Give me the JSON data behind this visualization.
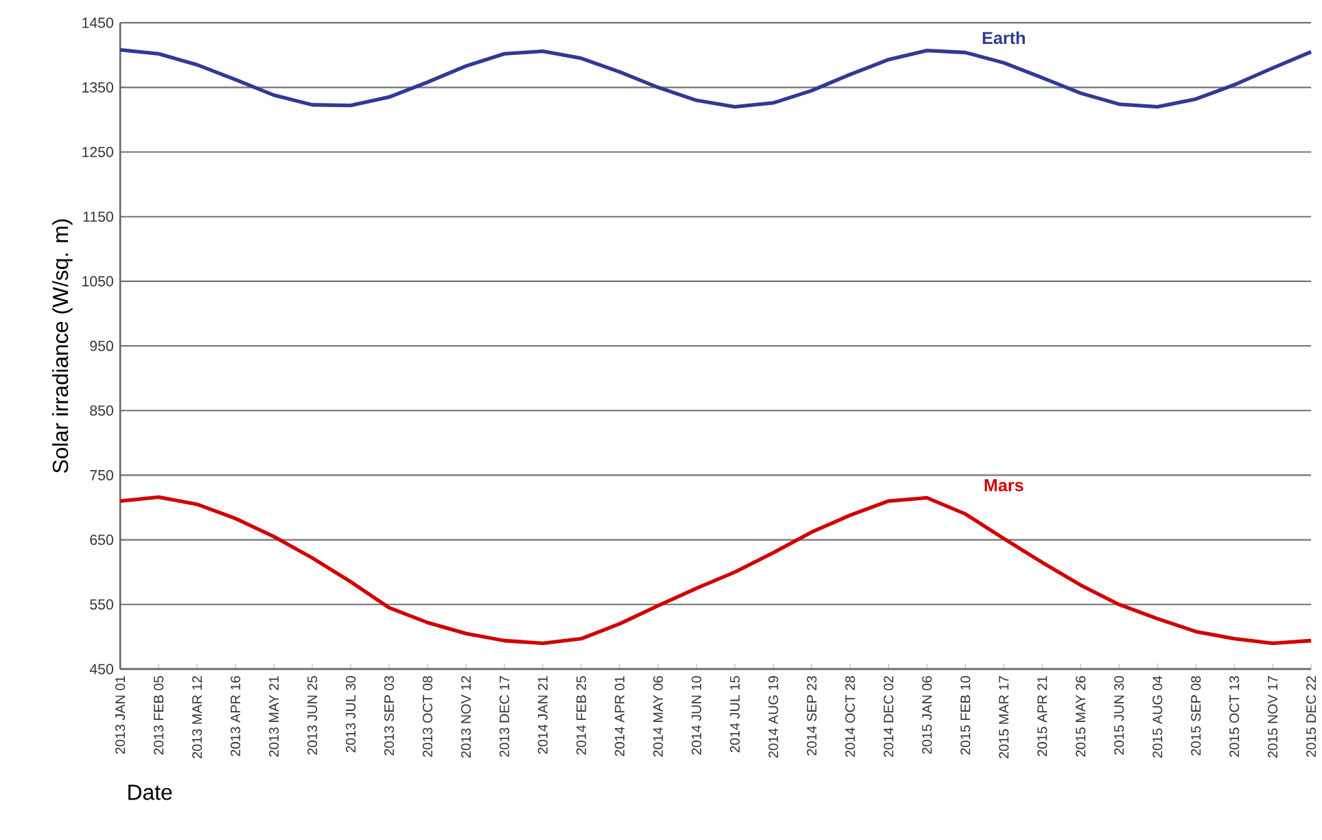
{
  "chart_data": {
    "type": "line",
    "xlabel": "Date",
    "ylabel": "Solar irradiance (W/sq. m)",
    "x": [
      "2013-01-01",
      "2013-02-05",
      "2013-03-12",
      "2013-04-16",
      "2013-05-21",
      "2013-06-25",
      "2013-07-30",
      "2013-09-03",
      "2013-10-08",
      "2013-11-12",
      "2013-12-17",
      "2014-01-21",
      "2014-02-25",
      "2014-04-01",
      "2014-05-06",
      "2014-06-10",
      "2014-07-15",
      "2014-08-19",
      "2014-09-23",
      "2014-10-28",
      "2014-12-02",
      "2015-01-06",
      "2015-02-10",
      "2015-03-17",
      "2015-04-21",
      "2015-05-26",
      "2015-06-30",
      "2015-08-04",
      "2015-09-08",
      "2015-10-13",
      "2015-11-17",
      "2015-12-22"
    ],
    "series": [
      {
        "name": "Earth",
        "color": "#2e3a94",
        "values": [
          1408,
          1402,
          1385,
          1362,
          1338,
          1323,
          1322,
          1335,
          1358,
          1383,
          1402,
          1406,
          1395,
          1374,
          1350,
          1330,
          1320,
          1326,
          1345,
          1370,
          1393,
          1407,
          1404,
          1388,
          1365,
          1341,
          1324,
          1320,
          1332,
          1354,
          1380,
          1405
        ]
      },
      {
        "name": "Mars",
        "color": "#d00000",
        "values": [
          710,
          716,
          705,
          683,
          655,
          622,
          585,
          545,
          522,
          505,
          494,
          490,
          497,
          520,
          548,
          575,
          600,
          630,
          662,
          688,
          710,
          715,
          690,
          652,
          615,
          580,
          550,
          528,
          508,
          497,
          490,
          494
        ]
      }
    ],
    "xlim": [
      "2013-01-01",
      "2015-12-22"
    ],
    "xticks": [
      {
        "value": "2013-01-01",
        "label": "2013 JAN 01"
      },
      {
        "value": "2013-02-05",
        "label": "2013 FEB 05"
      },
      {
        "value": "2013-03-12",
        "label": "2013 MAR 12"
      },
      {
        "value": "2013-04-16",
        "label": "2013 APR 16"
      },
      {
        "value": "2013-05-21",
        "label": "2013 MAY 21"
      },
      {
        "value": "2013-06-25",
        "label": "2013 JUN 25"
      },
      {
        "value": "2013-07-30",
        "label": "2013 JUL 30"
      },
      {
        "value": "2013-09-03",
        "label": "2013 SEP 03"
      },
      {
        "value": "2013-10-08",
        "label": "2013 OCT 08"
      },
      {
        "value": "2013-11-12",
        "label": "2013 NOV 12"
      },
      {
        "value": "2013-12-17",
        "label": "2013 DEC 17"
      },
      {
        "value": "2014-01-21",
        "label": "2014 JAN 21"
      },
      {
        "value": "2014-02-25",
        "label": "2014 FEB 25"
      },
      {
        "value": "2014-04-01",
        "label": "2014 APR 01"
      },
      {
        "value": "2014-05-06",
        "label": "2014 MAY 06"
      },
      {
        "value": "2014-06-10",
        "label": "2014 JUN 10"
      },
      {
        "value": "2014-07-15",
        "label": "2014 JUL 15"
      },
      {
        "value": "2014-08-19",
        "label": "2014 AUG 19"
      },
      {
        "value": "2014-09-23",
        "label": "2014 SEP 23"
      },
      {
        "value": "2014-10-28",
        "label": "2014 OCT 28"
      },
      {
        "value": "2014-12-02",
        "label": "2014 DEC 02"
      },
      {
        "value": "2015-01-06",
        "label": "2015 JAN 06"
      },
      {
        "value": "2015-02-10",
        "label": "2015 FEB 10"
      },
      {
        "value": "2015-03-17",
        "label": "2015 MAR 17"
      },
      {
        "value": "2015-04-21",
        "label": "2015 APR 21"
      },
      {
        "value": "2015-05-26",
        "label": "2015 MAY 26"
      },
      {
        "value": "2015-06-30",
        "label": "2015 JUN 30"
      },
      {
        "value": "2015-08-04",
        "label": "2015 AUG 04"
      },
      {
        "value": "2015-09-08",
        "label": "2015 SEP 08"
      },
      {
        "value": "2015-10-13",
        "label": "2015 OCT 13"
      },
      {
        "value": "2015-11-17",
        "label": "2015 NOV 17"
      },
      {
        "value": "2015-12-22",
        "label": "2015 DEC 22"
      }
    ],
    "ylim": [
      450,
      1450
    ],
    "yticks": [
      450,
      550,
      650,
      750,
      850,
      950,
      1050,
      1150,
      1250,
      1350,
      1450
    ],
    "grid": "y",
    "marker": "none",
    "line_style": "solid"
  }
}
